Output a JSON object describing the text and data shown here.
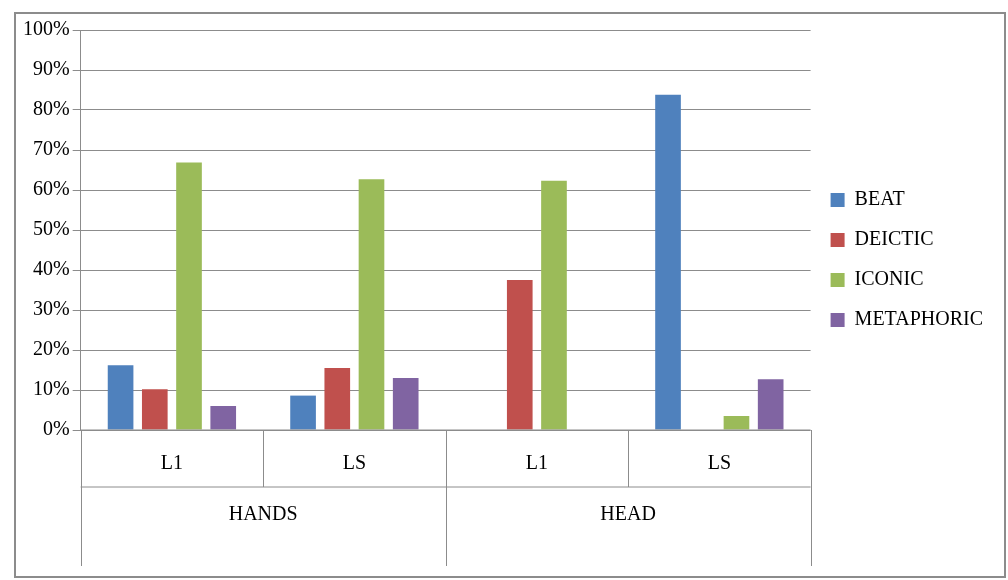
{
  "chart_data": {
    "type": "bar",
    "categories": [
      "L1",
      "LS",
      "L1",
      "LS"
    ],
    "series": [
      {
        "name": "BEAT",
        "color": "#4f81bd",
        "values": [
          16.2,
          8.6,
          0,
          83.8
        ]
      },
      {
        "name": "DEICTIC",
        "color": "#c0504d",
        "values": [
          10.2,
          15.5,
          37.5,
          0
        ]
      },
      {
        "name": "ICONIC",
        "color": "#9bbb59",
        "values": [
          66.9,
          62.7,
          62.3,
          3.5
        ]
      },
      {
        "name": "METAPHORIC",
        "color": "#8064a2",
        "values": [
          6.0,
          13.0,
          0,
          12.7
        ]
      }
    ],
    "ylim": [
      0,
      100
    ],
    "yticks": [
      {
        "value": 0,
        "label": "0%"
      },
      {
        "value": 10,
        "label": "10%"
      },
      {
        "value": 20,
        "label": "20%"
      },
      {
        "value": 30,
        "label": "30%"
      },
      {
        "value": 40,
        "label": "40%"
      },
      {
        "value": 50,
        "label": "50%"
      },
      {
        "value": 60,
        "label": "60%"
      },
      {
        "value": 70,
        "label": "70%"
      },
      {
        "value": 80,
        "label": "80%"
      },
      {
        "value": 90,
        "label": "90%"
      },
      {
        "value": 100,
        "label": "100%"
      }
    ],
    "grid": "y",
    "legend": "right",
    "annotations": [
      "HANDS",
      "HEAD"
    ]
  }
}
